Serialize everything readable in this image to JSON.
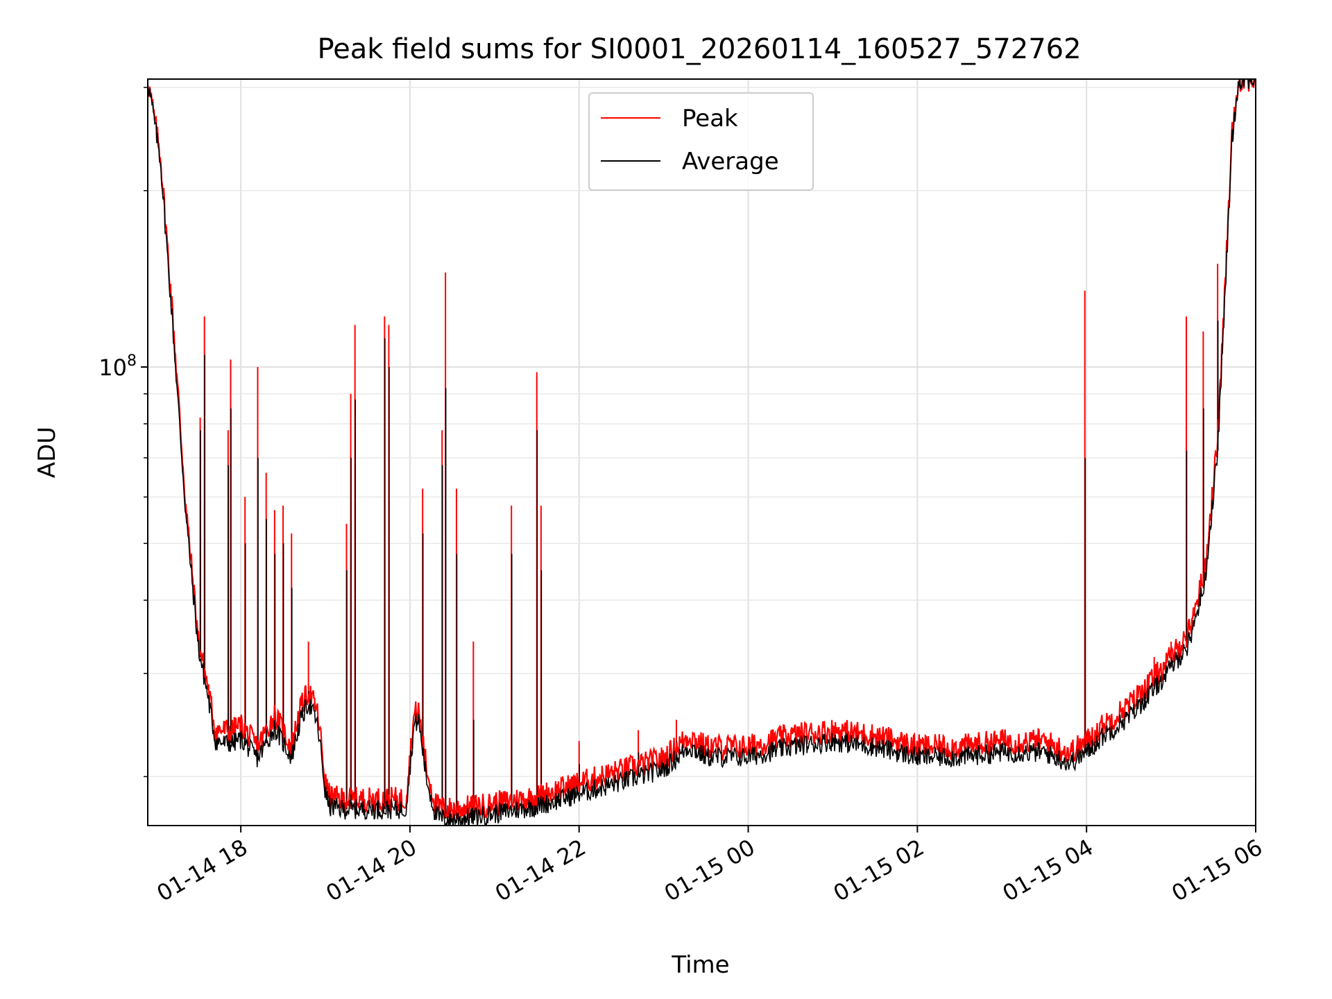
{
  "chart_data": {
    "type": "line",
    "title": "Peak field sums for SI0001_20260114_160527_572762",
    "xlabel": "Time",
    "ylabel": "ADU",
    "yscale": "log",
    "xlim_hours": [
      16.9,
      30.0
    ],
    "ylim": [
      16500000,
      310000000
    ],
    "grid": true,
    "legend_position": "upper center",
    "x_ticks": [
      {
        "hour": 18,
        "label": "01-14 18"
      },
      {
        "hour": 20,
        "label": "01-14 20"
      },
      {
        "hour": 22,
        "label": "01-14 22"
      },
      {
        "hour": 24,
        "label": "01-15 00"
      },
      {
        "hour": 26,
        "label": "01-15 02"
      },
      {
        "hour": 28,
        "label": "01-15 04"
      },
      {
        "hour": 30,
        "label": "01-15 06"
      }
    ],
    "y_major_ticks": [
      {
        "value": 100000000,
        "base": "10",
        "exp": "8"
      }
    ],
    "y_minor_ticks": [
      20000000,
      30000000,
      40000000,
      50000000,
      60000000,
      70000000,
      80000000,
      90000000,
      200000000,
      300000000
    ],
    "series": [
      {
        "name": "Peak",
        "color": "#ff0000",
        "x_hours": [
          16.9,
          17.05,
          17.2,
          17.35,
          17.5,
          17.6,
          17.7,
          17.8,
          17.9,
          18.0,
          18.2,
          18.4,
          18.6,
          18.7,
          18.8,
          18.9,
          18.95,
          19.0,
          19.05,
          19.2,
          19.4,
          19.6,
          19.8,
          19.95,
          20.05,
          20.1,
          20.2,
          20.3,
          20.35,
          20.5,
          20.8,
          21.0,
          21.5,
          22.0,
          22.5,
          23.0,
          23.3,
          23.5,
          24.0,
          24.5,
          25.0,
          25.5,
          26.0,
          26.5,
          27.0,
          27.5,
          27.8,
          28.0,
          28.2,
          28.5,
          28.8,
          29.0,
          29.2,
          29.4,
          29.55,
          29.65,
          29.72,
          29.8,
          30.0
        ],
        "values": [
          310000000,
          230000000,
          120000000,
          58000000,
          34000000,
          29000000,
          24000000,
          24000000,
          24000000,
          24500000,
          22500000,
          25500000,
          22500000,
          26000000,
          28000000,
          26000000,
          23000000,
          19500000,
          18500000,
          18300000,
          18300000,
          18300000,
          18300000,
          18300000,
          25500000,
          26000000,
          20500000,
          18000000,
          17700000,
          17600000,
          17800000,
          18000000,
          18500000,
          19500000,
          20500000,
          21500000,
          23500000,
          22500000,
          22500000,
          23500000,
          24000000,
          23500000,
          22500000,
          22500000,
          23000000,
          23000000,
          22000000,
          23000000,
          24500000,
          26500000,
          29500000,
          32000000,
          35000000,
          45000000,
          75000000,
          150000000,
          250000000,
          310000000,
          310000000
        ]
      },
      {
        "name": "Average",
        "color": "#000000",
        "x_hours": [
          16.9,
          17.05,
          17.2,
          17.35,
          17.5,
          17.6,
          17.7,
          17.8,
          17.9,
          18.0,
          18.2,
          18.4,
          18.6,
          18.7,
          18.8,
          18.9,
          18.95,
          19.0,
          19.05,
          19.2,
          19.4,
          19.6,
          19.8,
          19.95,
          20.05,
          20.1,
          20.2,
          20.3,
          20.35,
          20.5,
          20.8,
          21.0,
          21.5,
          22.0,
          22.5,
          23.0,
          23.3,
          23.5,
          24.0,
          24.5,
          25.0,
          25.5,
          26.0,
          26.5,
          27.0,
          27.5,
          27.8,
          28.0,
          28.2,
          28.5,
          28.8,
          29.0,
          29.2,
          29.4,
          29.55,
          29.65,
          29.72,
          29.8,
          30.0
        ],
        "values": [
          310000000,
          225000000,
          115000000,
          56000000,
          33000000,
          28000000,
          23000000,
          22800000,
          22800000,
          23200000,
          21500000,
          24200000,
          21600000,
          24800000,
          26800000,
          24800000,
          22000000,
          18700000,
          17800000,
          17600000,
          17600000,
          17600000,
          17600000,
          17600000,
          24500000,
          25000000,
          19700000,
          17300000,
          17000000,
          16900000,
          17100000,
          17300000,
          17800000,
          18700000,
          19600000,
          20600000,
          22500000,
          21600000,
          21600000,
          22500000,
          23000000,
          22500000,
          21600000,
          21600000,
          22000000,
          22000000,
          21100000,
          22000000,
          23500000,
          25300000,
          28200000,
          30700000,
          33500000,
          43000000,
          72000000,
          145000000,
          245000000,
          310000000,
          310000000
        ]
      }
    ],
    "spikes": [
      {
        "x_hour": 17.52,
        "peak": 82000000,
        "average": 78000000
      },
      {
        "x_hour": 17.57,
        "peak": 122000000,
        "average": 105000000
      },
      {
        "x_hour": 17.85,
        "peak": 78000000,
        "average": 68000000
      },
      {
        "x_hour": 17.88,
        "peak": 103000000,
        "average": 85000000
      },
      {
        "x_hour": 18.05,
        "peak": 60000000,
        "average": 50000000
      },
      {
        "x_hour": 18.2,
        "peak": 100000000,
        "average": 70000000
      },
      {
        "x_hour": 18.3,
        "peak": 66000000,
        "average": 55000000
      },
      {
        "x_hour": 18.4,
        "peak": 57000000,
        "average": 48000000
      },
      {
        "x_hour": 18.5,
        "peak": 58000000,
        "average": 50000000
      },
      {
        "x_hour": 18.6,
        "peak": 52000000,
        "average": 42000000
      },
      {
        "x_hour": 18.8,
        "peak": 34000000,
        "average": 28000000
      },
      {
        "x_hour": 19.25,
        "peak": 54000000,
        "average": 45000000
      },
      {
        "x_hour": 19.3,
        "peak": 90000000,
        "average": 70000000
      },
      {
        "x_hour": 19.35,
        "peak": 118000000,
        "average": 88000000
      },
      {
        "x_hour": 19.7,
        "peak": 122000000,
        "average": 112000000
      },
      {
        "x_hour": 19.75,
        "peak": 118000000,
        "average": 100000000
      },
      {
        "x_hour": 20.15,
        "peak": 62000000,
        "average": 52000000
      },
      {
        "x_hour": 20.38,
        "peak": 78000000,
        "average": 68000000
      },
      {
        "x_hour": 20.42,
        "peak": 145000000,
        "average": 92000000
      },
      {
        "x_hour": 20.55,
        "peak": 62000000,
        "average": 48000000
      },
      {
        "x_hour": 20.75,
        "peak": 34000000,
        "average": 25000000
      },
      {
        "x_hour": 21.2,
        "peak": 58000000,
        "average": 48000000
      },
      {
        "x_hour": 21.5,
        "peak": 98000000,
        "average": 78000000
      },
      {
        "x_hour": 21.55,
        "peak": 58000000,
        "average": 45000000
      },
      {
        "x_hour": 22.0,
        "peak": 23000000,
        "average": 21000000
      },
      {
        "x_hour": 22.7,
        "peak": 24000000,
        "average": 22000000
      },
      {
        "x_hour": 23.15,
        "peak": 25000000,
        "average": 23000000
      },
      {
        "x_hour": 27.98,
        "peak": 135000000,
        "average": 70000000
      },
      {
        "x_hour": 29.18,
        "peak": 122000000,
        "average": 72000000
      },
      {
        "x_hour": 29.38,
        "peak": 115000000,
        "average": 85000000
      },
      {
        "x_hour": 29.55,
        "peak": 150000000,
        "average": 120000000
      },
      {
        "x_hour": 28.8,
        "peak": 32000000,
        "average": 30000000
      },
      {
        "x_hour": 29.0,
        "peak": 34000000,
        "average": 32000000
      }
    ]
  }
}
